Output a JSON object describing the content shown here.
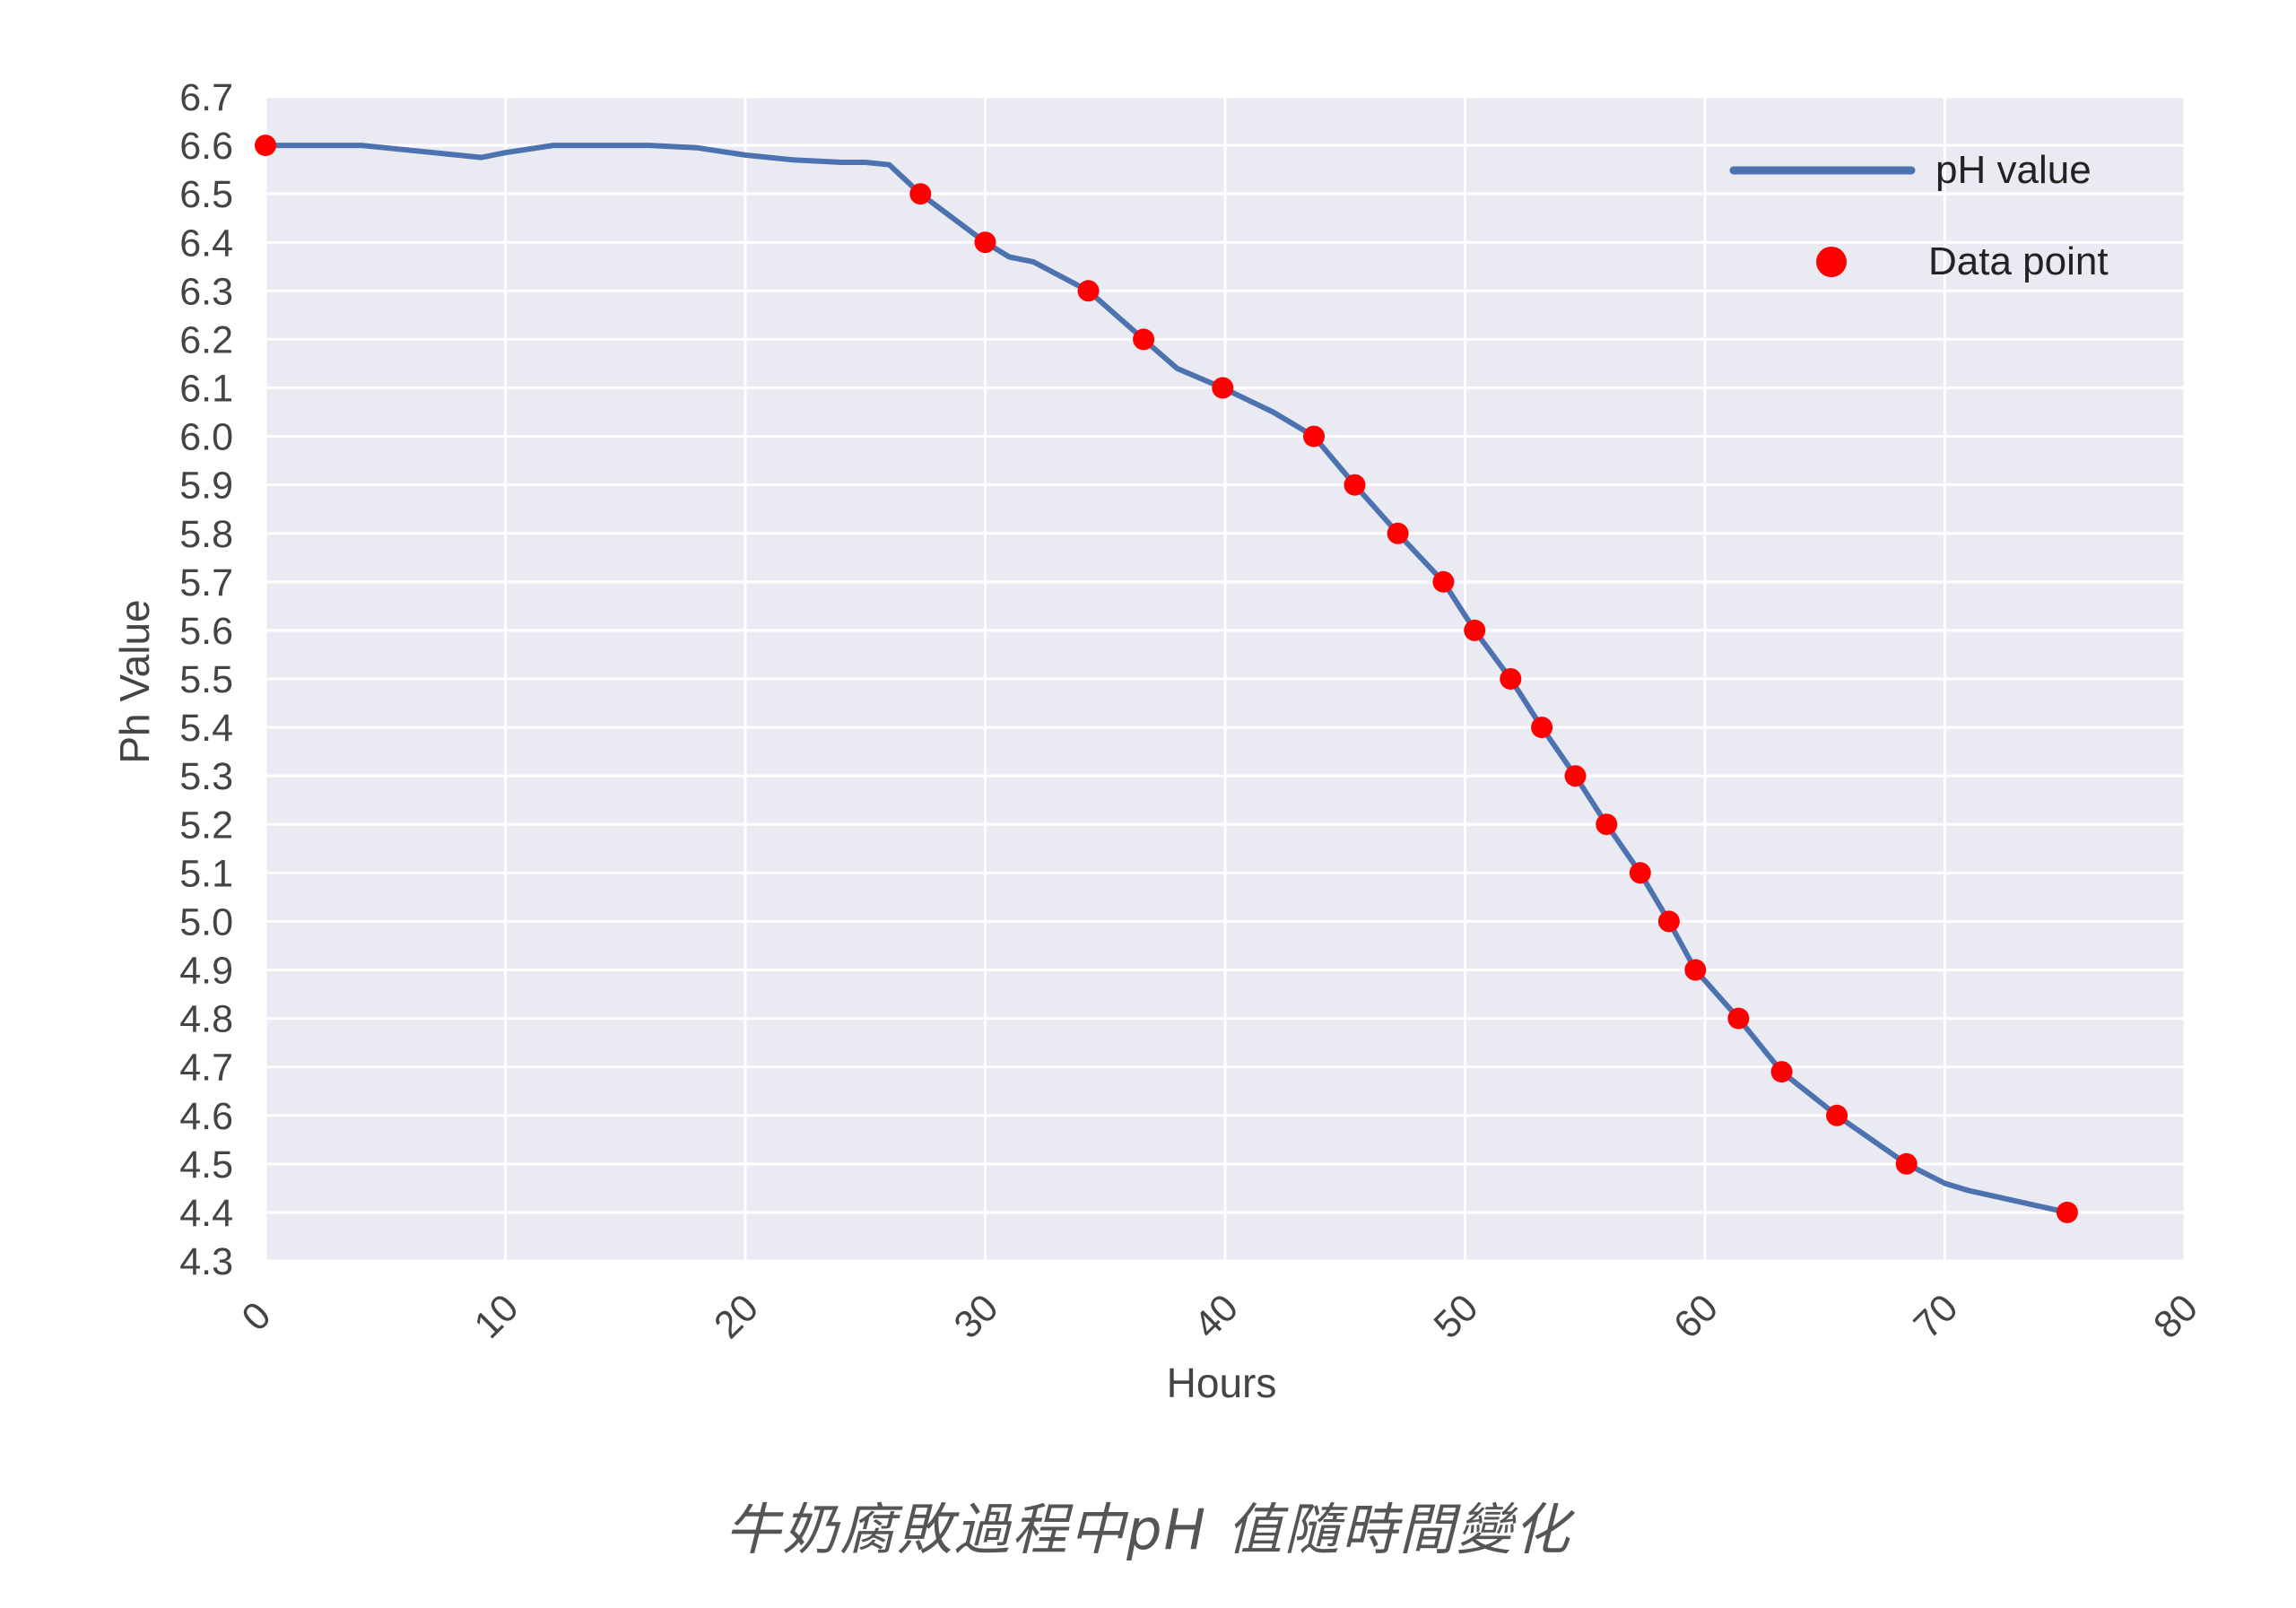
{
  "caption": "牛奶腐敗過程中pH 值隨時間變化",
  "colors": {
    "plot_background": "#eaeaf2",
    "grid": "#ffffff",
    "line": "#4c72b0",
    "marker": "#ff0000",
    "text": "#444444"
  },
  "chart_data": {
    "type": "line",
    "xlabel": "Hours",
    "ylabel": "Ph Value",
    "xlim": [
      0,
      80
    ],
    "ylim": [
      4.3,
      6.7
    ],
    "x_ticks": [
      "0",
      "10",
      "20",
      "30",
      "40",
      "50",
      "60",
      "70",
      "80"
    ],
    "y_ticks": [
      "4.3",
      "4.4",
      "4.5",
      "4.6",
      "4.7",
      "4.8",
      "4.9",
      "5.0",
      "5.1",
      "5.2",
      "5.3",
      "5.4",
      "5.5",
      "5.6",
      "5.7",
      "5.8",
      "5.9",
      "6.0",
      "6.1",
      "6.2",
      "6.3",
      "6.4",
      "6.5",
      "6.6",
      "6.7"
    ],
    "x_tick_rotation": "45 degrees",
    "grid": true,
    "legend": {
      "position": "top-right",
      "entries": [
        "pH value",
        "Data point"
      ]
    },
    "series": [
      {
        "name": "pH value",
        "style": "line",
        "x": [
          0,
          2,
          4,
          5,
          7,
          8,
          9,
          10,
          12,
          14,
          16,
          18,
          20,
          22,
          24,
          25,
          26,
          27.3,
          30,
          31,
          32,
          34.3,
          36.6,
          38,
          39.9,
          42,
          43.7,
          45.4,
          47.2,
          49.1,
          50.4,
          51.9,
          53.2,
          54.6,
          55.9,
          57.3,
          58.5,
          59.6,
          61.4,
          63.2,
          65.5,
          68.4,
          70,
          71,
          75.1
        ],
        "y": [
          6.6,
          6.6,
          6.6,
          6.595,
          6.585,
          6.58,
          6.575,
          6.585,
          6.6,
          6.6,
          6.6,
          6.595,
          6.58,
          6.57,
          6.565,
          6.565,
          6.56,
          6.5,
          6.4,
          6.37,
          6.36,
          6.3,
          6.2,
          6.14,
          6.1,
          6.05,
          6.0,
          5.9,
          5.8,
          5.7,
          5.6,
          5.5,
          5.4,
          5.3,
          5.2,
          5.1,
          5.0,
          4.9,
          4.8,
          4.69,
          4.6,
          4.5,
          4.46,
          4.445,
          4.4
        ]
      },
      {
        "name": "Data point",
        "style": "markers",
        "x": [
          0,
          27.3,
          30,
          34.3,
          36.6,
          39.9,
          43.7,
          45.4,
          47.2,
          49.1,
          50.4,
          51.9,
          53.2,
          54.6,
          55.9,
          57.3,
          58.5,
          59.6,
          61.4,
          63.2,
          65.5,
          68.4,
          75.1
        ],
        "y": [
          6.6,
          6.5,
          6.4,
          6.3,
          6.2,
          6.1,
          6.0,
          5.9,
          5.8,
          5.7,
          5.6,
          5.5,
          5.4,
          5.3,
          5.2,
          5.1,
          5.0,
          4.9,
          4.8,
          4.69,
          4.6,
          4.5,
          4.4
        ]
      }
    ]
  }
}
